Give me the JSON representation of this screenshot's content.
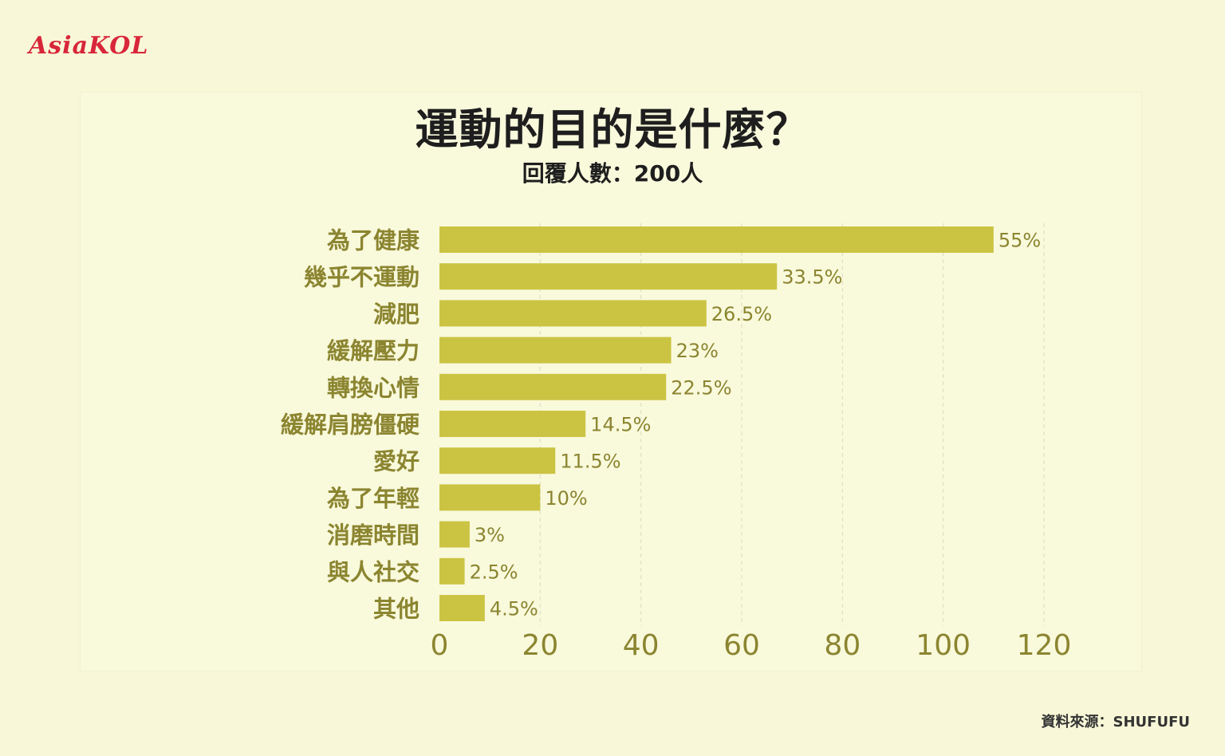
{
  "logo": "AsiaKOL",
  "source": "資料來源：SHUFUFU",
  "colors": {
    "background": "#f8f8d8",
    "bar": "#cbc443",
    "label": "#8b8530",
    "title": "#1e1e1e",
    "logo": "#d8263a"
  },
  "chart_data": {
    "type": "bar",
    "orientation": "horizontal",
    "title": "運動的目的是什麼？",
    "subtitle": "回覆人數：200人",
    "categories": [
      "為了健康",
      "幾乎不運動",
      "減肥",
      "緩解壓力",
      "轉換心情",
      "緩解肩膀僵硬",
      "愛好",
      "為了年輕",
      "消磨時間",
      "與人社交",
      "其他"
    ],
    "values": [
      110,
      67,
      53,
      46,
      45,
      29,
      23,
      20,
      6,
      5,
      9
    ],
    "value_labels": [
      "55%",
      "33.5%",
      "26.5%",
      "23%",
      "22.5%",
      "14.5%",
      "11.5%",
      "10%",
      "3%",
      "2.5%",
      "4.5%"
    ],
    "xlim": [
      0,
      120
    ],
    "xticks": [
      0,
      20,
      40,
      60,
      80,
      100,
      120
    ],
    "grid": true,
    "legend": "none"
  }
}
